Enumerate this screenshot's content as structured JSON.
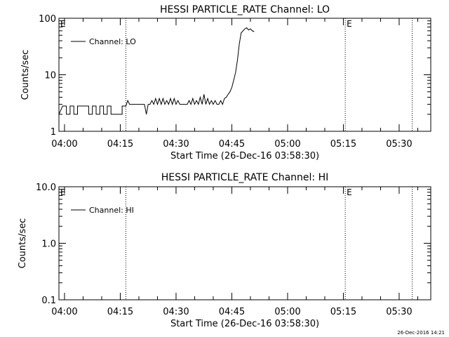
{
  "footer_timestamp": "26-Dec-2016 14:21",
  "chart_data": [
    {
      "type": "line",
      "title": "HESSI PARTICLE_RATE Channel: LO",
      "xlabel": "Start Time (26-Dec-16 03:58:30)",
      "ylabel": "Counts/sec",
      "yscale": "log",
      "xlim": [
        "03:58:30",
        "05:38:30"
      ],
      "ylim": [
        1,
        100
      ],
      "x_ticks": [
        "04:00",
        "04:15",
        "04:30",
        "04:45",
        "05:00",
        "05:15",
        "05:30"
      ],
      "y_ticks": [
        {
          "value": 1,
          "label": "1"
        },
        {
          "value": 10,
          "label": "10"
        },
        {
          "value": 100,
          "label": "100"
        }
      ],
      "legend": {
        "label": "Channel: LO",
        "placement": "top-left"
      },
      "markers": [
        {
          "time": "03:58:30",
          "label": "E"
        },
        {
          "time": "04:16:30",
          "label": ""
        },
        {
          "time": "05:15:30",
          "label": "E"
        },
        {
          "time": "05:33:30",
          "label": ""
        }
      ],
      "series": [
        {
          "x": [
            "03:58:30",
            "03:59:30",
            "04:00:30",
            "04:00:30",
            "04:01:30",
            "04:01:30",
            "04:02:30",
            "04:02:30",
            "04:03:30",
            "04:03:30",
            "04:04:30",
            "04:04:30",
            "04:05:30",
            "04:05:30",
            "04:06:30",
            "04:06:30",
            "04:07:30",
            "04:07:30",
            "04:08:30",
            "04:08:30",
            "04:09:30",
            "04:09:30",
            "04:10:30",
            "04:10:30",
            "04:11:30",
            "04:11:30",
            "04:12:30",
            "04:12:30",
            "04:13:30",
            "04:13:30",
            "04:14:30",
            "04:14:30",
            "04:15:30",
            "04:15:30",
            "04:16:30",
            "04:17:00",
            "04:17:30",
            "04:18:30",
            "04:19:30",
            "04:20:30",
            "04:21:30",
            "04:22:00",
            "04:22:30",
            "04:23:00",
            "04:23:30",
            "04:24:00",
            "04:24:30",
            "04:25:00",
            "04:25:30",
            "04:26:00",
            "04:26:30",
            "04:27:00",
            "04:27:30",
            "04:28:00",
            "04:28:30",
            "04:29:00",
            "04:29:30",
            "04:30:00",
            "04:30:30",
            "04:31:00",
            "04:31:30",
            "04:32:00",
            "04:32:30",
            "04:33:00",
            "04:33:30",
            "04:34:00",
            "04:34:30",
            "04:35:00",
            "04:35:30",
            "04:36:00",
            "04:36:30",
            "04:37:00",
            "04:37:30",
            "04:38:00",
            "04:38:30",
            "04:39:00",
            "04:39:30",
            "04:40:00",
            "04:40:30",
            "04:41:00",
            "04:41:30",
            "04:42:00",
            "04:42:30",
            "04:43:00",
            "04:43:30",
            "04:44:00",
            "04:44:30",
            "04:45:00",
            "04:45:30",
            "04:46:00",
            "04:46:30",
            "04:47:00",
            "04:47:30",
            "04:48:00",
            "04:48:30",
            "04:49:00",
            "04:49:30",
            "04:50:00",
            "04:50:30",
            "04:51:00"
          ],
          "values": [
            2,
            2.8,
            2.8,
            2,
            2,
            2.8,
            2.8,
            2,
            2,
            2.8,
            2.8,
            2.8,
            2.8,
            2.8,
            2.8,
            2,
            2,
            2.8,
            2.8,
            2,
            2,
            2.8,
            2.8,
            2,
            2,
            2.8,
            2.8,
            2,
            2,
            2,
            2,
            2,
            2,
            2.8,
            2.8,
            3.5,
            3,
            3,
            3,
            3,
            3,
            2,
            3,
            3,
            3.5,
            3,
            3.8,
            3,
            3.8,
            3,
            3.8,
            3,
            3.5,
            3,
            3.8,
            3,
            3.8,
            3,
            3.5,
            3,
            3,
            3,
            3,
            3,
            3.5,
            3,
            3.8,
            3,
            3.5,
            3,
            4,
            3,
            4.5,
            3,
            3.8,
            3,
            3.5,
            3,
            3.5,
            3,
            3,
            3.5,
            3,
            3.8,
            4,
            4.5,
            5,
            6,
            8,
            11,
            18,
            35,
            55,
            60,
            65,
            68,
            62,
            65,
            60,
            58
          ]
        }
      ]
    },
    {
      "type": "line",
      "title": "HESSI PARTICLE_RATE Channel: HI",
      "xlabel": "Start Time (26-Dec-16 03:58:30)",
      "ylabel": "Counts/sec",
      "yscale": "log",
      "xlim": [
        "03:58:30",
        "05:38:30"
      ],
      "ylim": [
        0.1,
        10
      ],
      "x_ticks": [
        "04:00",
        "04:15",
        "04:30",
        "04:45",
        "05:00",
        "05:15",
        "05:30"
      ],
      "y_ticks": [
        {
          "value": 0.1,
          "label": "0.1"
        },
        {
          "value": 1,
          "label": "1.0"
        },
        {
          "value": 10,
          "label": "10.0"
        }
      ],
      "legend": {
        "label": "Channel: HI",
        "placement": "top-left"
      },
      "markers": [
        {
          "time": "03:58:30",
          "label": "E"
        },
        {
          "time": "04:16:30",
          "label": ""
        },
        {
          "time": "05:15:30",
          "label": "E"
        },
        {
          "time": "05:33:30",
          "label": ""
        }
      ],
      "series": []
    }
  ]
}
